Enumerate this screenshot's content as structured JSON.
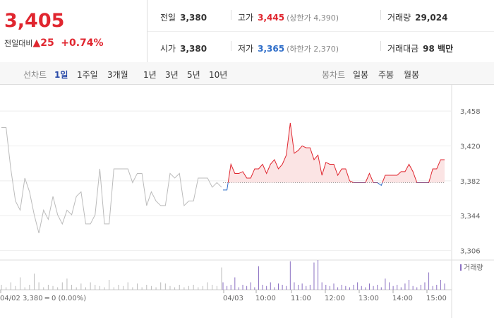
{
  "summary": {
    "price": "3,405",
    "change_label": "전일대비",
    "change": "▲25",
    "change_pct": "+0.74%",
    "rows": [
      [
        {
          "label": "전일",
          "value": "3,380"
        },
        {
          "label": "고가",
          "value": "3,445",
          "note": "(상한가 4,390)"
        },
        {
          "label": "거래량",
          "value": "29,024"
        }
      ],
      [
        {
          "label": "시가",
          "value": "3,380"
        },
        {
          "label": "저가",
          "value": "3,365",
          "note": "(하한가 2,370)"
        },
        {
          "label": "거래대금",
          "value": "98 백만"
        }
      ]
    ]
  },
  "tabs": {
    "line_label": "선차트",
    "line_periods": [
      "1일",
      "1주일",
      "3개월",
      "1년",
      "3년",
      "5년",
      "10년"
    ],
    "candle_label": "봉차트",
    "candle_periods": [
      "일봉",
      "주봉",
      "월봉"
    ]
  },
  "chart_data": {
    "type": "line",
    "baseline": 3380,
    "ylim": [
      3298,
      3485
    ],
    "yticks": [
      {
        "value": 3458,
        "label": "3,458"
      },
      {
        "value": 3420,
        "label": "3,420"
      },
      {
        "value": 3382,
        "label": "3,382"
      },
      {
        "value": 3344,
        "label": "3,344"
      },
      {
        "value": 3306,
        "label": "3,306"
      }
    ],
    "x_labels": [
      "04/02",
      "04/03",
      "10:00",
      "11:00",
      "12:00",
      "13:00",
      "14:00",
      "15:00"
    ],
    "series": [
      {
        "color": "#bbbbbb",
        "values": [
          3440,
          3440,
          3395,
          3360,
          3350,
          3385,
          3370,
          3345,
          3325,
          3350,
          3340,
          3365,
          3345,
          3335,
          3350,
          3345,
          3365,
          3370,
          3335,
          3335,
          3345,
          3395,
          3335,
          3335,
          3395,
          3395,
          3395,
          3395,
          3380,
          3390,
          3390,
          3355,
          3370,
          3360,
          3355,
          3355,
          3390,
          3385,
          3390,
          3355,
          3360,
          3360,
          3385,
          3385,
          3385,
          3375,
          3380,
          3375
        ]
      },
      {
        "color": "#e0262f",
        "down_color": "#2f6ec9",
        "values": [
          3372,
          3372,
          3400,
          3390,
          3390,
          3392,
          3385,
          3385,
          3395,
          3395,
          3400,
          3390,
          3400,
          3405,
          3395,
          3400,
          3410,
          3445,
          3412,
          3415,
          3420,
          3418,
          3418,
          3405,
          3410,
          3388,
          3402,
          3400,
          3400,
          3388,
          3395,
          3395,
          3382,
          3380,
          3380,
          3380,
          3380,
          3390,
          3380,
          3380,
          3377,
          3388,
          3388,
          3388,
          3388,
          3392,
          3392,
          3400,
          3392,
          3380,
          3380,
          3380,
          3380,
          3395,
          3395,
          3405,
          3405
        ]
      }
    ],
    "volume": {
      "name": "거래량",
      "color": "#8a6fc2",
      "ylim": [
        0,
        1200
      ],
      "prev": [
        200,
        100,
        300,
        150,
        500,
        100,
        200,
        650,
        300,
        100,
        200,
        150,
        100,
        300,
        450,
        200,
        100,
        250,
        100,
        300,
        200,
        150,
        100,
        400,
        100,
        200,
        150,
        300,
        100,
        250,
        100,
        200,
        150,
        100,
        300,
        250,
        150,
        100,
        200,
        100,
        150,
        200,
        100,
        150,
        300,
        200,
        150,
        900
      ],
      "today": [
        300,
        150,
        200,
        500,
        100,
        200,
        150,
        300,
        100,
        950,
        200,
        150,
        300,
        100,
        250,
        200,
        150,
        1150,
        300,
        200,
        250,
        150,
        200,
        1100,
        1200,
        300,
        200,
        150,
        250,
        100,
        200,
        150,
        100,
        200,
        300,
        150,
        100,
        250,
        150,
        200,
        100,
        450,
        300,
        150,
        200,
        100,
        250,
        400,
        150,
        100,
        200,
        300,
        700,
        150,
        200,
        400,
        250
      ]
    },
    "footer": "04/02  3,380 ━ 0 (0.00%)"
  }
}
